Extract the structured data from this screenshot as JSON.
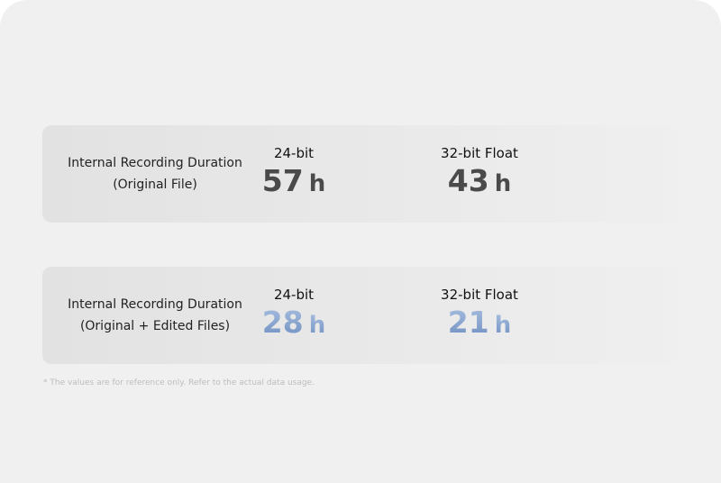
{
  "rows": [
    {
      "label": [
        "Internal Recording Duration",
        "(Original File)"
      ],
      "cells": [
        {
          "header": "24-bit",
          "value": "57",
          "unit": "h"
        },
        {
          "header": "32-bit Float",
          "value": "43",
          "unit": "h"
        }
      ]
    },
    {
      "label": [
        "Internal Recording Duration",
        "(Original + Edited Files)"
      ],
      "cells": [
        {
          "header": "24-bit",
          "value": "28",
          "unit": "h"
        },
        {
          "header": "32-bit Float",
          "value": "21",
          "unit": "h"
        }
      ]
    }
  ],
  "footnote": "* The values are for reference only. Refer to the actual data usage."
}
